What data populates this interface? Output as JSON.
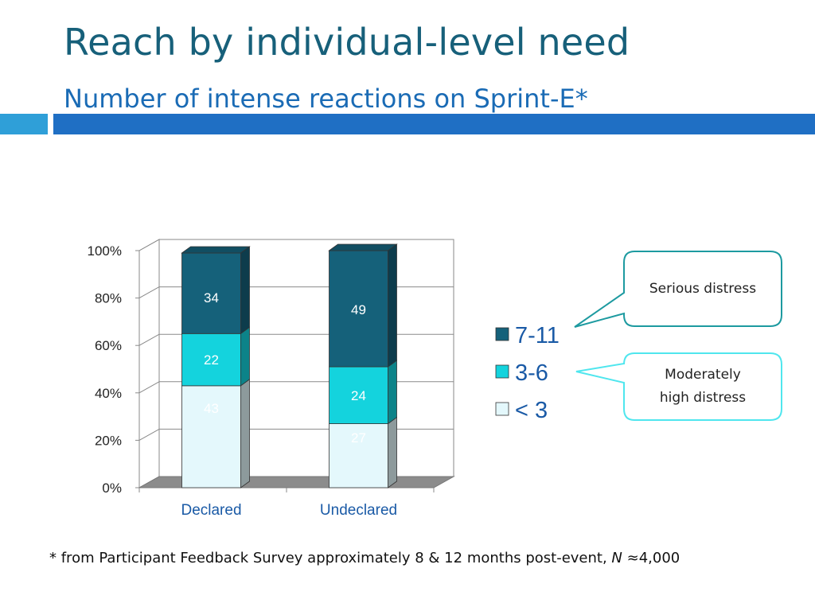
{
  "slide": {
    "title": "Reach by individual-level need",
    "subtitle": "Number of intense reactions on Sprint-E*"
  },
  "colors": {
    "title": "#17607a",
    "subtitle": "#1a6bb5",
    "band_left": "#2f9fd8",
    "band_right": "#1f6fc4",
    "series_7_11": "#15617a",
    "series_3_6": "#14d3dd",
    "series_lt3": "#e4f8fc",
    "callout_teal": "#1d9aa0",
    "callout_cyan": "#4fe6ee"
  },
  "callouts": {
    "serious": "Serious distress",
    "moderate_line1": "Moderately",
    "moderate_line2": "high distress"
  },
  "footnote": {
    "prefix": "* from Participant Feedback Survey approximately 8 & 12 months post-event, ",
    "n_symbol": "N",
    "suffix": " ≈4,000"
  },
  "chart_data": {
    "type": "bar",
    "stacked": true,
    "percent_stacked": true,
    "title": "",
    "xlabel": "",
    "ylabel": "",
    "categories": [
      "Declared",
      "Undeclared"
    ],
    "series": [
      {
        "name": "< 3",
        "values": [
          43,
          27
        ],
        "color": "#e4f8fc"
      },
      {
        "name": "3-6",
        "values": [
          22,
          24
        ],
        "color": "#14d3dd"
      },
      {
        "name": "7-11",
        "values": [
          34,
          49
        ],
        "color": "#15617a"
      }
    ],
    "y_ticks": [
      "0%",
      "20%",
      "40%",
      "60%",
      "80%",
      "100%"
    ],
    "ylim": [
      0,
      100
    ],
    "grid": true,
    "legend_position": "right",
    "legend_order": [
      "7-11",
      "3-6",
      "< 3"
    ],
    "style": "3d"
  }
}
